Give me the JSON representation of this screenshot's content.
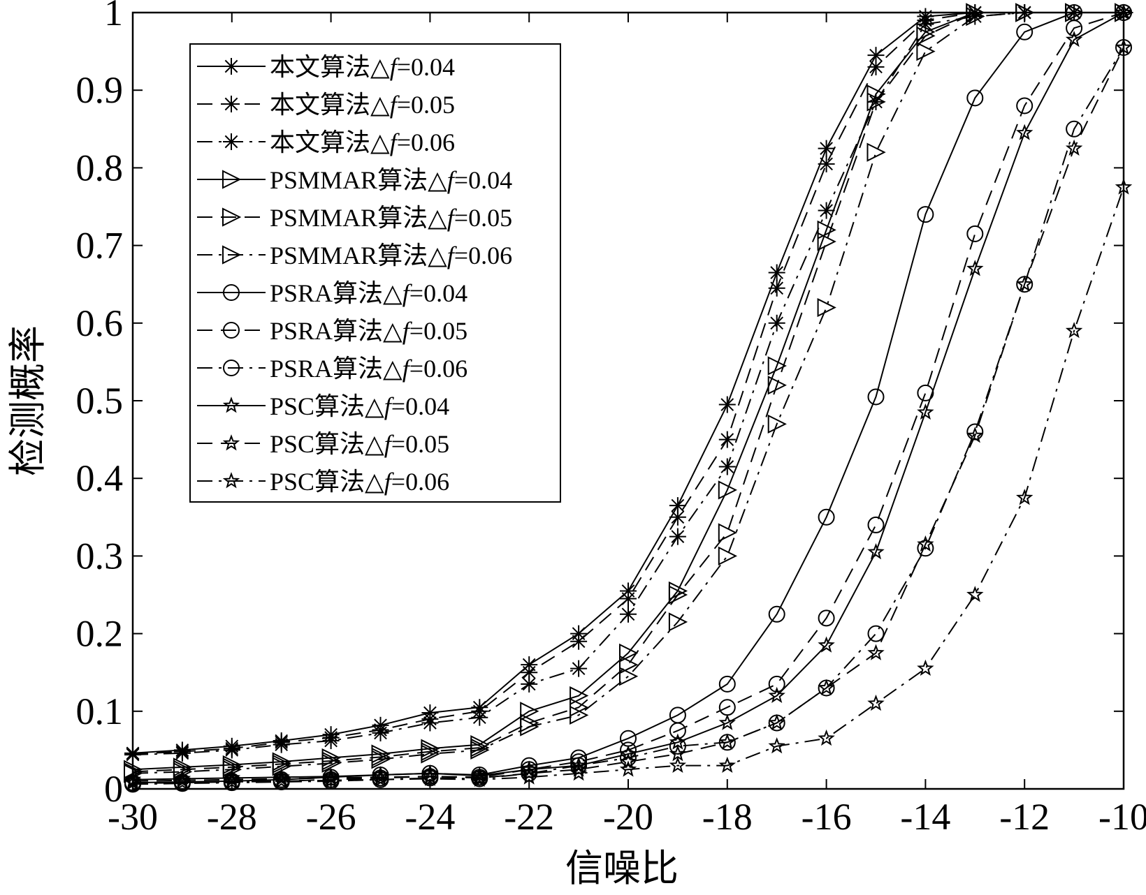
{
  "chart_data": {
    "type": "line",
    "title": "",
    "xlabel": "信噪比",
    "ylabel": "检测概率",
    "xlim": [
      -30,
      -10
    ],
    "ylim": [
      0,
      1
    ],
    "xticks": [
      -30,
      -28,
      -26,
      -24,
      -22,
      -20,
      -18,
      -16,
      -14,
      -12,
      -10
    ],
    "xtick_labels": [
      "-30",
      "-28",
      "-26",
      "-24",
      "-22",
      "-20",
      "-18",
      "-16",
      "-14",
      "-12",
      "-10"
    ],
    "yticks": [
      0,
      0.1,
      0.2,
      0.3,
      0.4,
      0.5,
      0.6,
      0.7,
      0.8,
      0.9,
      1
    ],
    "ytick_labels": [
      "0",
      "0.1",
      "0.2",
      "0.3",
      "0.4",
      "0.5",
      "0.6",
      "0.7",
      "0.8",
      "0.9",
      "1"
    ],
    "grid": false,
    "legend_position": "top-left",
    "line_color": "#000000",
    "x": [
      -30,
      -29,
      -28,
      -27,
      -26,
      -25,
      -24,
      -23,
      -22,
      -21,
      -20,
      -19,
      -18,
      -17,
      -16,
      -15,
      -14,
      -13,
      -12,
      -11,
      -10
    ],
    "series": [
      {
        "name": "本文算法△f=0.04",
        "algo": "本文算法",
        "df": "0.04",
        "marker": "asterisk",
        "linestyle": "solid",
        "values": [
          0.046,
          0.05,
          0.055,
          0.062,
          0.07,
          0.082,
          0.098,
          0.105,
          0.16,
          0.2,
          0.255,
          0.365,
          0.495,
          0.665,
          0.825,
          0.945,
          0.995,
          1.0,
          1.0,
          1.0,
          1.0
        ]
      },
      {
        "name": "本文算法△f=0.05",
        "algo": "本文算法",
        "df": "0.05",
        "marker": "asterisk",
        "linestyle": "dashed",
        "values": [
          0.045,
          0.048,
          0.052,
          0.06,
          0.066,
          0.076,
          0.09,
          0.1,
          0.15,
          0.19,
          0.245,
          0.35,
          0.45,
          0.645,
          0.805,
          0.93,
          0.99,
          1.0,
          1.0,
          1.0,
          1.0
        ]
      },
      {
        "name": "本文算法△f=0.06",
        "algo": "本文算法",
        "df": "0.06",
        "marker": "asterisk",
        "linestyle": "dashdot",
        "values": [
          0.044,
          0.046,
          0.05,
          0.057,
          0.062,
          0.072,
          0.085,
          0.092,
          0.135,
          0.155,
          0.225,
          0.325,
          0.415,
          0.6,
          0.745,
          0.885,
          0.985,
          0.995,
          1.0,
          1.0,
          1.0
        ]
      },
      {
        "name": "PSMMAR算法△f=0.04",
        "algo": "PSMMAR算法",
        "df": "0.04",
        "marker": "triangle-right",
        "linestyle": "solid",
        "values": [
          0.025,
          0.028,
          0.031,
          0.035,
          0.04,
          0.045,
          0.052,
          0.057,
          0.1,
          0.12,
          0.175,
          0.255,
          0.385,
          0.545,
          0.72,
          0.895,
          0.975,
          1.0,
          1.0,
          1.0,
          1.0
        ]
      },
      {
        "name": "PSMMAR算法△f=0.05",
        "algo": "PSMMAR算法",
        "df": "0.05",
        "marker": "triangle-right",
        "linestyle": "dashed",
        "values": [
          0.022,
          0.025,
          0.028,
          0.032,
          0.036,
          0.041,
          0.048,
          0.053,
          0.085,
          0.105,
          0.16,
          0.25,
          0.33,
          0.52,
          0.705,
          0.885,
          0.97,
          1.0,
          1.0,
          1.0,
          1.0
        ]
      },
      {
        "name": "PSMMAR算法△f=0.06",
        "algo": "PSMMAR算法",
        "df": "0.06",
        "marker": "triangle-right",
        "linestyle": "dashdot",
        "values": [
          0.02,
          0.022,
          0.025,
          0.029,
          0.033,
          0.038,
          0.045,
          0.05,
          0.08,
          0.095,
          0.145,
          0.215,
          0.3,
          0.47,
          0.62,
          0.82,
          0.95,
          0.995,
          1.0,
          1.0,
          1.0
        ]
      },
      {
        "name": "PSRA算法△f=0.04",
        "algo": "PSRA算法",
        "df": "0.04",
        "marker": "circle",
        "linestyle": "solid",
        "values": [
          0.008,
          0.009,
          0.01,
          0.012,
          0.015,
          0.018,
          0.02,
          0.018,
          0.03,
          0.04,
          0.065,
          0.095,
          0.135,
          0.225,
          0.35,
          0.505,
          0.74,
          0.89,
          0.975,
          1.0,
          1.0
        ]
      },
      {
        "name": "PSRA算法△f=0.05",
        "algo": "PSRA算法",
        "df": "0.05",
        "marker": "circle",
        "linestyle": "dashed",
        "values": [
          0.007,
          0.008,
          0.009,
          0.01,
          0.012,
          0.014,
          0.016,
          0.015,
          0.025,
          0.035,
          0.05,
          0.075,
          0.105,
          0.135,
          0.22,
          0.34,
          0.51,
          0.715,
          0.88,
          0.98,
          1.0
        ]
      },
      {
        "name": "PSRA算法△f=0.06",
        "algo": "PSRA算法",
        "df": "0.06",
        "marker": "circle",
        "linestyle": "dashdot",
        "values": [
          0.006,
          0.007,
          0.008,
          0.009,
          0.01,
          0.012,
          0.014,
          0.013,
          0.02,
          0.03,
          0.04,
          0.055,
          0.06,
          0.085,
          0.13,
          0.2,
          0.31,
          0.46,
          0.65,
          0.85,
          0.955
        ]
      },
      {
        "name": "PSC算法△f=0.04",
        "algo": "PSC算法",
        "df": "0.04",
        "marker": "star",
        "linestyle": "solid",
        "values": [
          0.012,
          0.013,
          0.014,
          0.015,
          0.016,
          0.018,
          0.02,
          0.017,
          0.025,
          0.03,
          0.045,
          0.06,
          0.085,
          0.12,
          0.185,
          0.305,
          0.485,
          0.67,
          0.845,
          0.965,
          1.0
        ]
      },
      {
        "name": "PSC算法△f=0.05",
        "algo": "PSC算法",
        "df": "0.05",
        "marker": "star",
        "linestyle": "dashed",
        "values": [
          0.01,
          0.011,
          0.012,
          0.013,
          0.014,
          0.015,
          0.016,
          0.014,
          0.02,
          0.025,
          0.035,
          0.045,
          0.06,
          0.085,
          0.13,
          0.175,
          0.315,
          0.455,
          0.65,
          0.825,
          0.955
        ]
      },
      {
        "name": "PSC算法△f=0.06",
        "algo": "PSC算法",
        "df": "0.06",
        "marker": "star",
        "linestyle": "dashdot",
        "values": [
          0.008,
          0.008,
          0.009,
          0.01,
          0.011,
          0.012,
          0.013,
          0.012,
          0.015,
          0.02,
          0.025,
          0.03,
          0.03,
          0.055,
          0.065,
          0.11,
          0.155,
          0.25,
          0.375,
          0.59,
          0.775
        ]
      }
    ]
  }
}
